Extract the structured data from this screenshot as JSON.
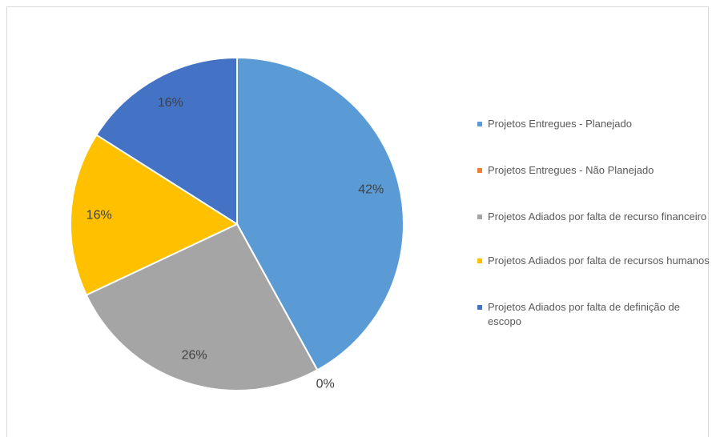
{
  "chart_data": {
    "type": "pie",
    "categories": [
      "Projetos Entregues - Planejado",
      "Projetos Entregues - Não Planejado",
      "Projetos Adiados por falta de recurso financeiro",
      "Projetos Adiados por falta de recursos humanos",
      "Projetos Adiados por falta de definição de escopo"
    ],
    "values": [
      42,
      0,
      26,
      16,
      16
    ],
    "value_labels": [
      "42%",
      "0%",
      "26%",
      "16%",
      "16%"
    ],
    "colors": [
      "#5b9bd5",
      "#ed7d31",
      "#a5a5a5",
      "#ffc000",
      "#4472c4"
    ],
    "legend": "right"
  }
}
